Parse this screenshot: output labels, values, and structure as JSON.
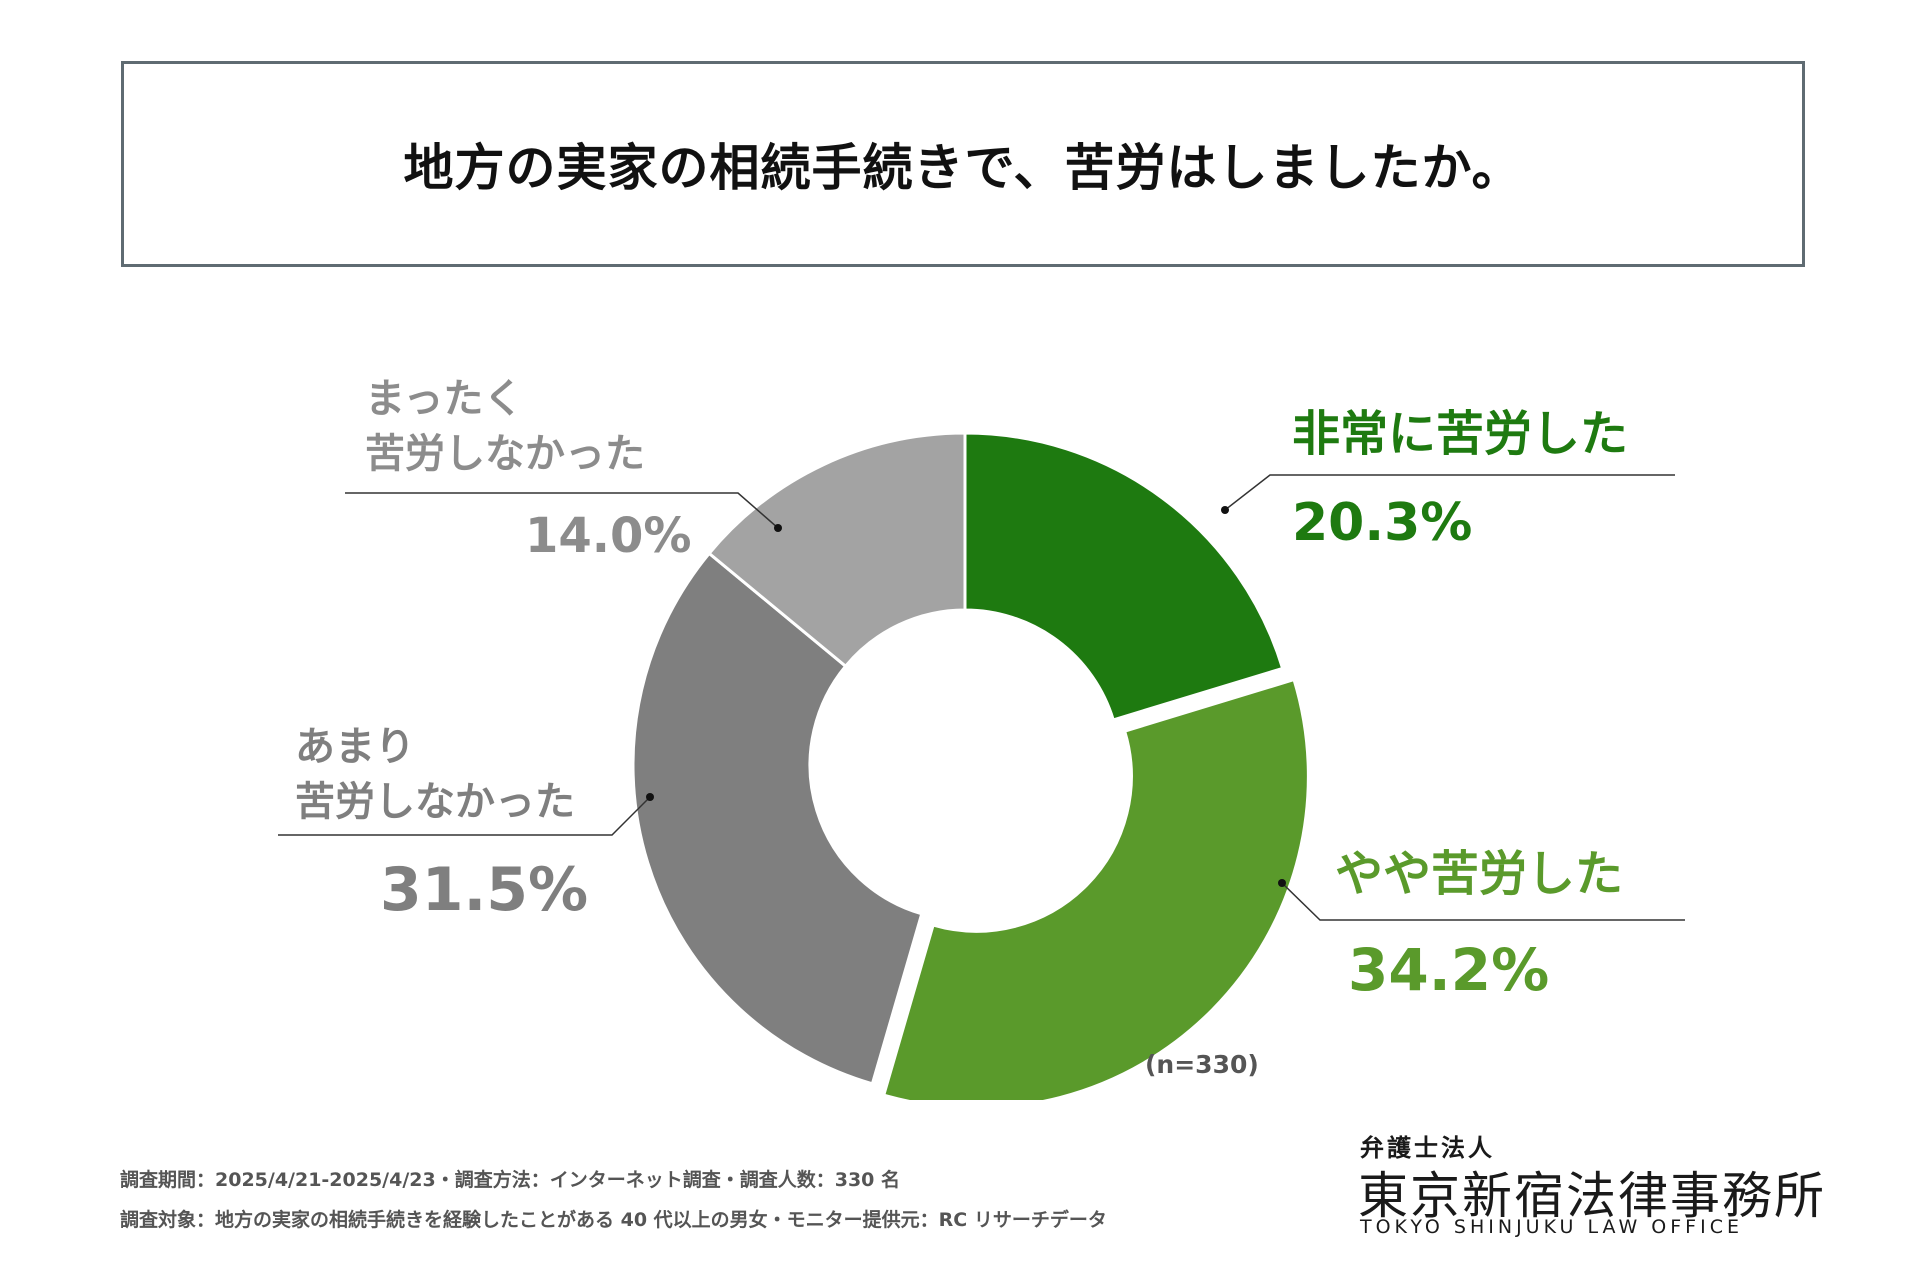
{
  "title": "地方の実家の相続手続きで、苦労はしましたか。",
  "chart_data": {
    "type": "pie",
    "variant": "donut",
    "title": "地方の実家の相続手続きで、苦労はしましたか。",
    "sample_note": "(n=330)",
    "categories": [
      "非常に苦労した",
      "やや苦労した",
      "あまり苦労しなかった",
      "まったく苦労しなかった"
    ],
    "values": [
      20.3,
      34.2,
      31.5,
      14.0
    ],
    "value_labels": [
      "20.3%",
      "34.2%",
      "31.5%",
      "14.0%"
    ],
    "label_lines": [
      [
        "非常に苦労した"
      ],
      [
        "やや苦労した"
      ],
      [
        "あまり",
        "苦労しなかった"
      ],
      [
        "まったく",
        "苦労しなかった"
      ]
    ],
    "colors": [
      "#1e7a10",
      "#5a9a2b",
      "#7f7f7f",
      "#a3a3a3"
    ],
    "label_colors": [
      "#1e7a10",
      "#5a9a2b",
      "#7f7f7f",
      "#8c8c8c"
    ]
  },
  "footer": {
    "line1": "調査期間：2025/4/21-2025/4/23・調査方法：インターネット調査・調査人数：330 名",
    "line2": "調査対象：地方の実家の相続手続きを経験したことがある 40 代以上の男女・モニター提供元：RC リサーチデータ"
  },
  "logo": {
    "small": "弁護士法人",
    "main": "東京新宿法律事務所",
    "english": "TOKYO SHINJUKU LAW OFFICE"
  }
}
